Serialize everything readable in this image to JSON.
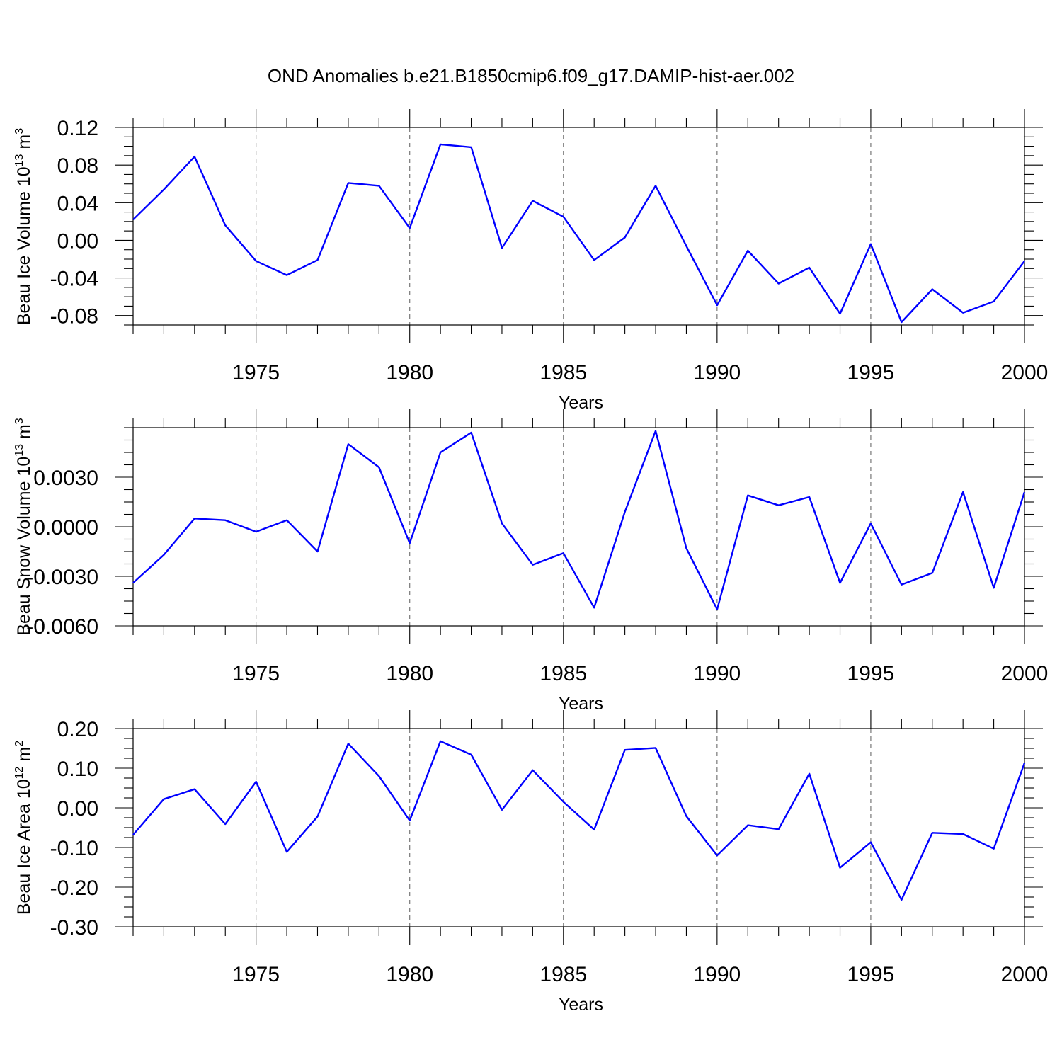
{
  "figure_title": "OND Anomalies b.e21.B1850cmip6.f09_g17.DAMIP-hist-aer.002",
  "chart_data": [
    {
      "type": "line",
      "title": "",
      "xlabel": "Years",
      "ylabel_main": "Beau Ice Volume 10",
      "ylabel_sup": "13",
      "ylabel_unit": " m",
      "ylabel_unit_sup": "3",
      "xlim": [
        1971,
        2000
      ],
      "ylim": [
        -0.09,
        0.12
      ],
      "yticks": [
        -0.08,
        -0.04,
        0.0,
        0.04,
        0.08,
        0.12
      ],
      "ytick_labels": [
        "-0.08",
        "-0.04",
        "0.00",
        "0.04",
        "0.08",
        "0.12"
      ],
      "xticks": [
        1975,
        1980,
        1985,
        1990,
        1995,
        2000
      ],
      "xtick_labels": [
        "1975",
        "1980",
        "1985",
        "1990",
        "1995",
        "2000"
      ],
      "grid": "vertical-dashed",
      "series": [
        {
          "name": "Beau Ice Volume",
          "color": "#0000ff",
          "x": [
            1971,
            1972,
            1973,
            1974,
            1975,
            1976,
            1977,
            1978,
            1979,
            1980,
            1981,
            1982,
            1983,
            1984,
            1985,
            1986,
            1987,
            1988,
            1989,
            1990,
            1991,
            1992,
            1993,
            1994,
            1995,
            1996,
            1997,
            1998,
            1999,
            2000
          ],
          "values": [
            0.022,
            0.054,
            0.089,
            0.016,
            -0.022,
            -0.037,
            -0.021,
            0.061,
            0.058,
            0.013,
            0.102,
            0.099,
            -0.008,
            0.042,
            0.025,
            -0.021,
            0.003,
            0.058,
            -0.006,
            -0.069,
            -0.011,
            -0.046,
            -0.029,
            -0.078,
            -0.004,
            -0.087,
            -0.052,
            -0.077,
            -0.065,
            -0.022
          ]
        }
      ]
    },
    {
      "type": "line",
      "title": "",
      "xlabel": "Years",
      "ylabel_main": "Beau Snow Volume 10",
      "ylabel_sup": "13",
      "ylabel_unit": " m",
      "ylabel_unit_sup": "3",
      "xlim": [
        1971,
        2000
      ],
      "ylim": [
        -0.006,
        0.006
      ],
      "yticks": [
        -0.006,
        -0.003,
        0.0,
        0.003
      ],
      "ytick_labels": [
        "-0.0060",
        "-0.0030",
        "0.0000",
        "0.0030"
      ],
      "xticks": [
        1975,
        1980,
        1985,
        1990,
        1995,
        2000
      ],
      "xtick_labels": [
        "1975",
        "1980",
        "1985",
        "1990",
        "1995",
        "2000"
      ],
      "grid": "vertical-dashed",
      "series": [
        {
          "name": "Beau Snow Volume",
          "color": "#0000ff",
          "x": [
            1971,
            1972,
            1973,
            1974,
            1975,
            1976,
            1977,
            1978,
            1979,
            1980,
            1981,
            1982,
            1983,
            1984,
            1985,
            1986,
            1987,
            1988,
            1989,
            1990,
            1991,
            1992,
            1993,
            1994,
            1995,
            1996,
            1997,
            1998,
            1999,
            2000
          ],
          "values": [
            -0.0034,
            -0.0017,
            0.0005,
            0.0004,
            -0.0003,
            0.0004,
            -0.0015,
            0.005,
            0.0036,
            -0.001,
            0.0045,
            0.0057,
            0.0002,
            -0.0023,
            -0.0016,
            -0.0049,
            0.0009,
            0.0058,
            -0.0013,
            -0.005,
            0.0019,
            0.0013,
            0.0018,
            -0.0034,
            0.0002,
            -0.0035,
            -0.0028,
            0.0021,
            -0.0037,
            0.0021
          ]
        }
      ]
    },
    {
      "type": "line",
      "title": "",
      "xlabel": "Years",
      "ylabel_main": "Beau Ice Area 10",
      "ylabel_sup": "12",
      "ylabel_unit": " m",
      "ylabel_unit_sup": "2",
      "xlim": [
        1971,
        2000
      ],
      "ylim": [
        -0.3,
        0.2
      ],
      "yticks": [
        -0.3,
        -0.2,
        -0.1,
        0.0,
        0.1,
        0.2
      ],
      "ytick_labels": [
        "-0.30",
        "-0.20",
        "-0.10",
        "0.00",
        "0.10",
        "0.20"
      ],
      "xticks": [
        1975,
        1980,
        1985,
        1990,
        1995,
        2000
      ],
      "xtick_labels": [
        "1975",
        "1980",
        "1985",
        "1990",
        "1995",
        "2000"
      ],
      "grid": "vertical-dashed",
      "series": [
        {
          "name": "Beau Ice Area",
          "color": "#0000ff",
          "x": [
            1971,
            1972,
            1973,
            1974,
            1975,
            1976,
            1977,
            1978,
            1979,
            1980,
            1981,
            1982,
            1983,
            1984,
            1985,
            1986,
            1987,
            1988,
            1989,
            1990,
            1991,
            1992,
            1993,
            1994,
            1995,
            1996,
            1997,
            1998,
            1999,
            2000
          ],
          "values": [
            -0.068,
            0.022,
            0.047,
            -0.041,
            0.066,
            -0.111,
            -0.022,
            0.162,
            0.08,
            -0.032,
            0.168,
            0.134,
            -0.005,
            0.095,
            0.015,
            -0.055,
            0.146,
            0.151,
            -0.021,
            -0.12,
            -0.044,
            -0.054,
            0.086,
            -0.151,
            -0.087,
            -0.232,
            -0.063,
            -0.066,
            -0.103,
            0.113
          ]
        }
      ]
    }
  ]
}
